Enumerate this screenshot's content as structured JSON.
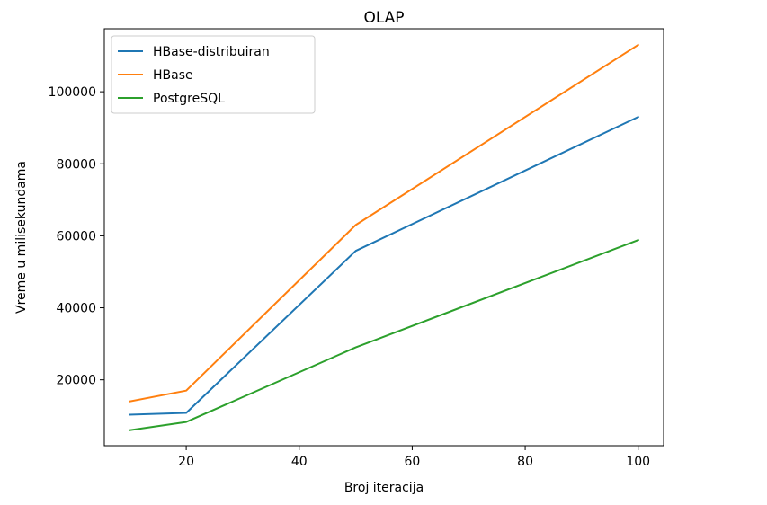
{
  "chart_data": {
    "type": "line",
    "title": "OLAP",
    "xlabel": "Broj iteracija",
    "ylabel": "Vreme u milisekundama",
    "x": [
      10,
      20,
      50,
      100
    ],
    "xlim": [
      5.5,
      104.5
    ],
    "ylim": [
      1700,
      117500
    ],
    "xticks": [
      20,
      40,
      60,
      80,
      100
    ],
    "yticks": [
      20000,
      40000,
      60000,
      80000,
      100000
    ],
    "legend_position": "top-left",
    "grid": false,
    "series": [
      {
        "name": "HBase-distribuiran",
        "color": "#1f77b4",
        "values": [
          10300,
          10800,
          55800,
          93000
        ]
      },
      {
        "name": "HBase",
        "color": "#ff7f0e",
        "values": [
          14000,
          17000,
          63000,
          113000
        ]
      },
      {
        "name": "PostgreSQL",
        "color": "#2ca02c",
        "values": [
          6000,
          8300,
          29000,
          58800
        ]
      }
    ]
  }
}
